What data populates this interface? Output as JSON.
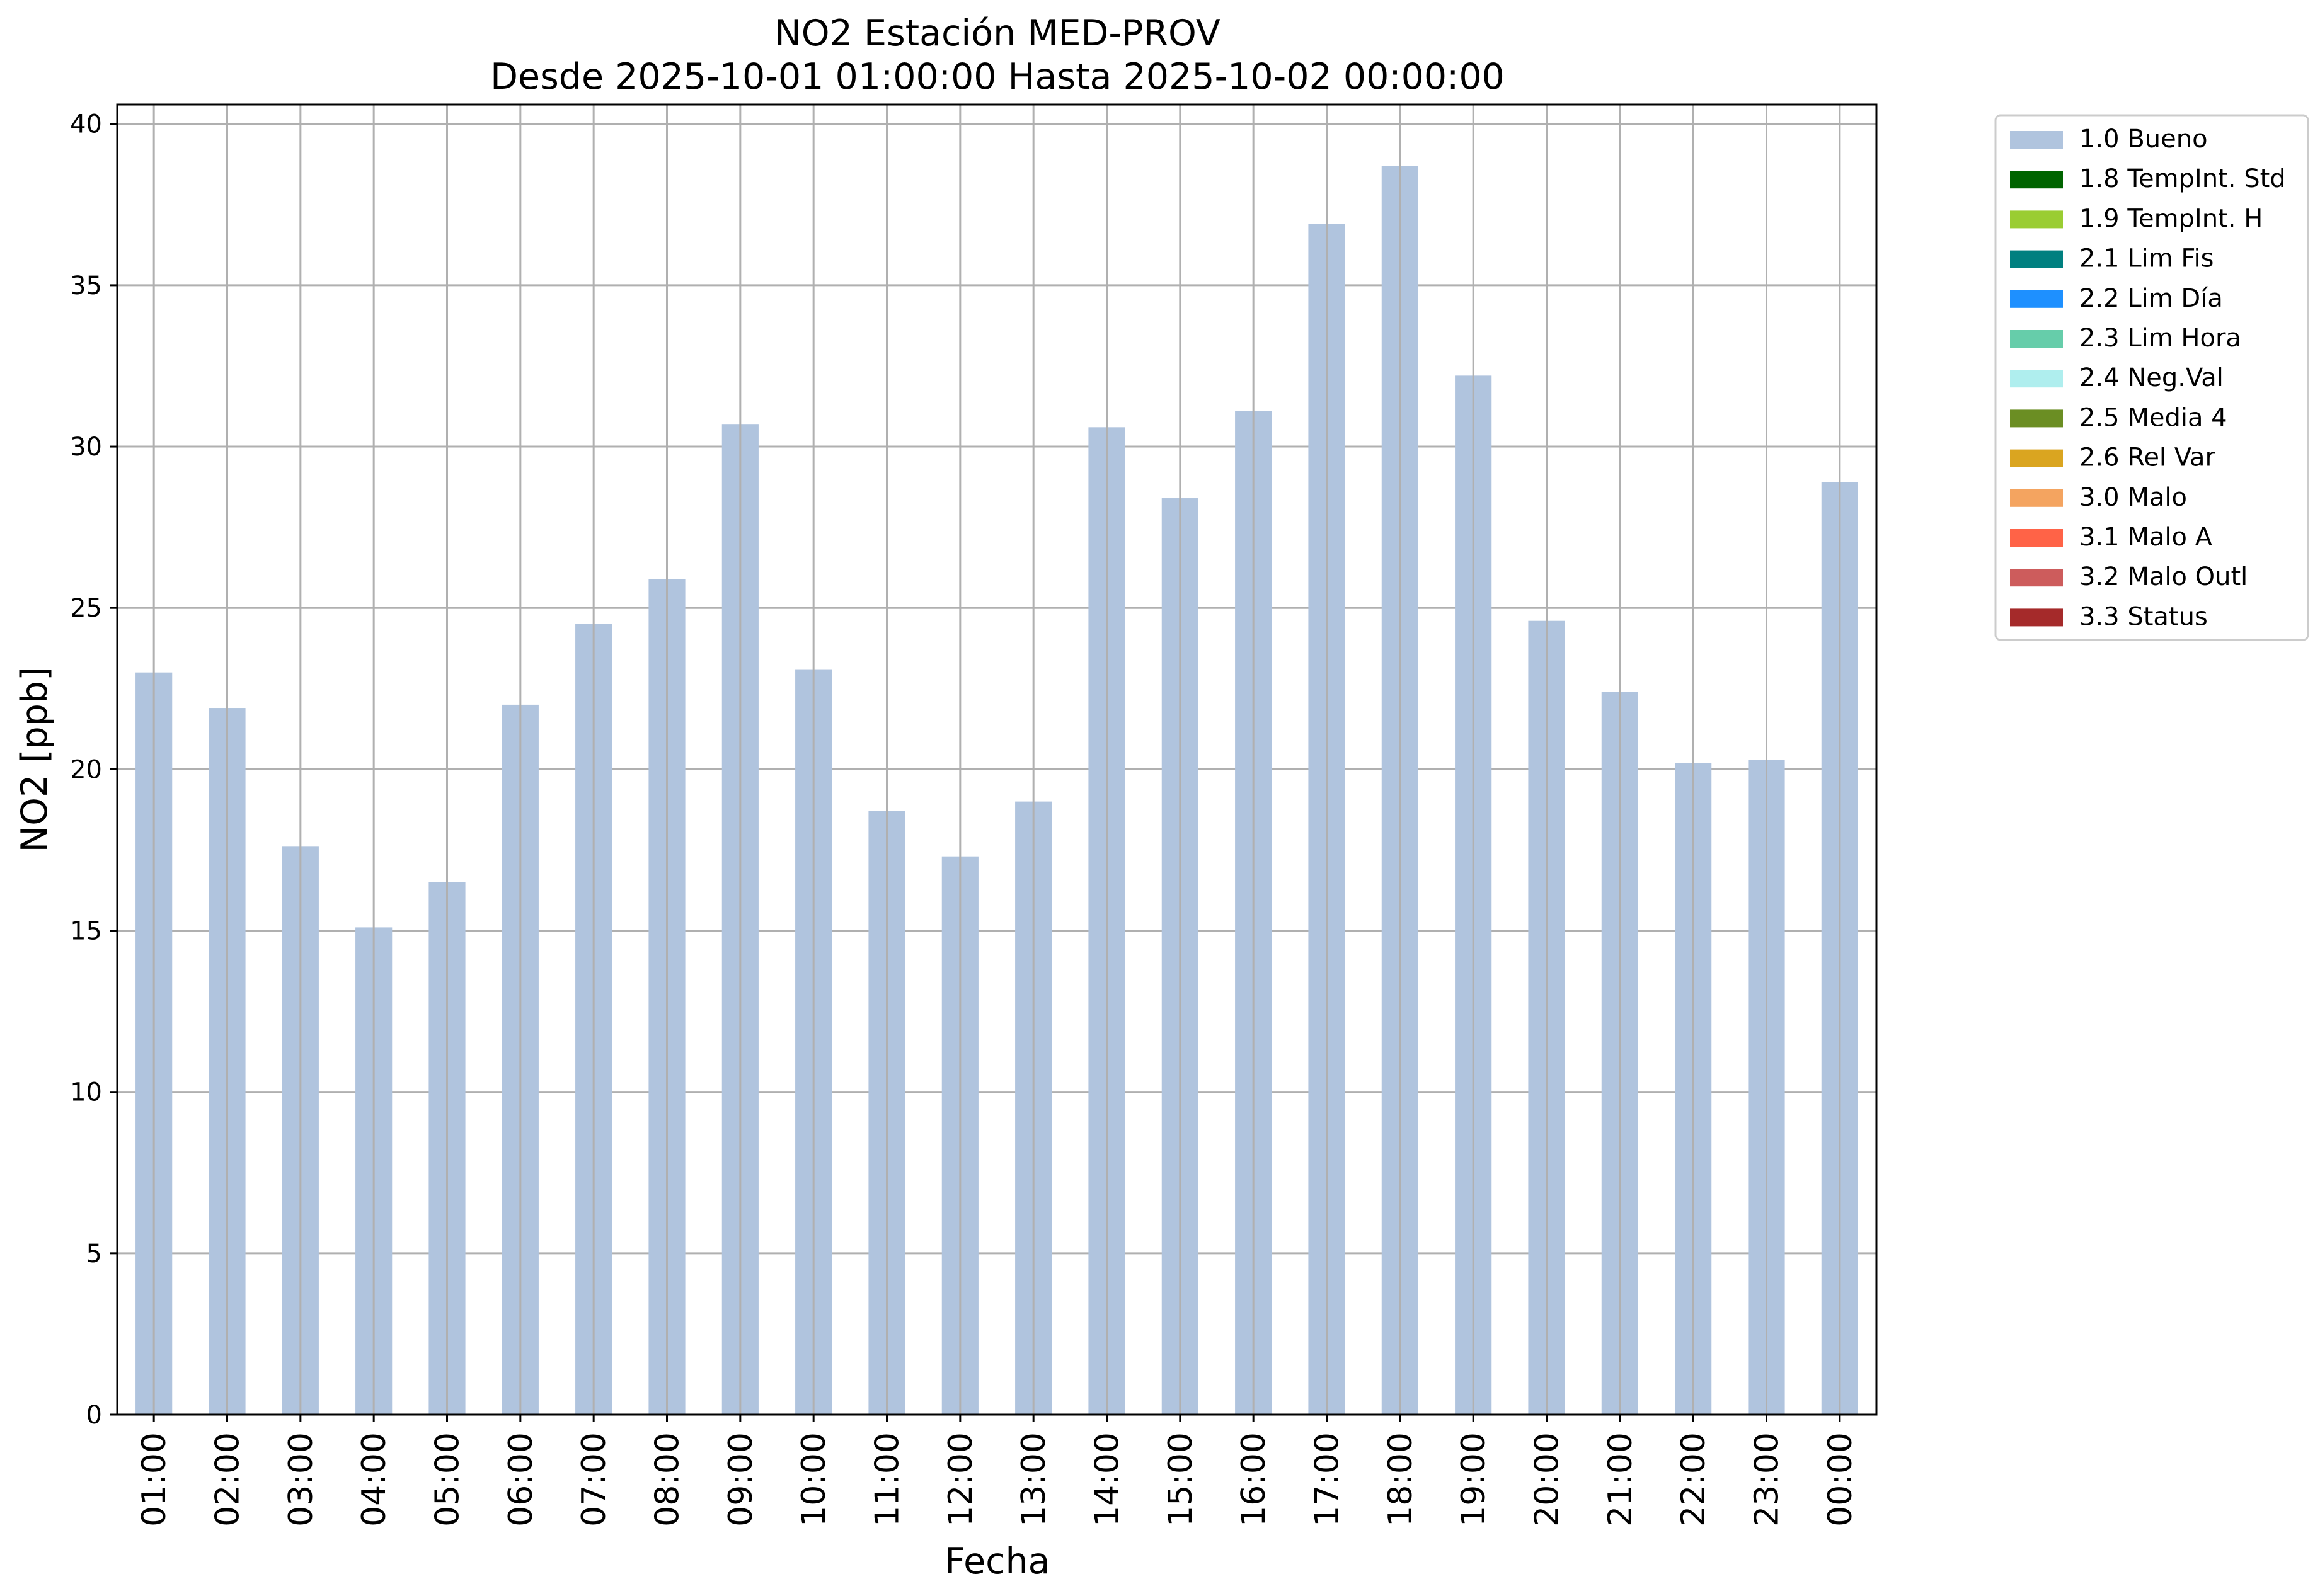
{
  "chart_data": {
    "type": "bar",
    "title": "NO2 Estación MED-PROV",
    "subtitle": "Desde 2025-10-01 01:00:00 Hasta 2025-10-02 00:00:00",
    "xlabel": "Fecha",
    "ylabel": "NO2 [ppb]",
    "ylim": [
      0,
      40.6
    ],
    "yticks": [
      0,
      5,
      10,
      15,
      20,
      25,
      30,
      35,
      40
    ],
    "grid": true,
    "legend_position": "outside top-right",
    "categories": [
      "01:00",
      "02:00",
      "03:00",
      "04:00",
      "05:00",
      "06:00",
      "07:00",
      "08:00",
      "09:00",
      "10:00",
      "11:00",
      "12:00",
      "13:00",
      "14:00",
      "15:00",
      "16:00",
      "17:00",
      "18:00",
      "19:00",
      "20:00",
      "21:00",
      "22:00",
      "23:00",
      "00:00"
    ],
    "series": [
      {
        "name": "1.0 Bueno",
        "color": "#b0c4de",
        "values": [
          23.0,
          21.9,
          17.6,
          15.1,
          16.5,
          22.0,
          24.5,
          25.9,
          30.7,
          23.1,
          18.7,
          17.3,
          19.0,
          30.6,
          28.4,
          31.1,
          36.9,
          38.7,
          32.2,
          24.6,
          22.4,
          20.2,
          20.3,
          28.9
        ]
      }
    ],
    "legend": [
      {
        "label": "1.0 Bueno",
        "color": "#b0c4de"
      },
      {
        "label": "1.8 TempInt. Std",
        "color": "#006400"
      },
      {
        "label": "1.9 TempInt. H",
        "color": "#9acd32"
      },
      {
        "label": "2.1 Lim Fis",
        "color": "#008080"
      },
      {
        "label": "2.2 Lim Día",
        "color": "#1e90ff"
      },
      {
        "label": "2.3 Lim Hora",
        "color": "#66cdaa"
      },
      {
        "label": "2.4 Neg.Val",
        "color": "#afeeee"
      },
      {
        "label": "2.5 Media 4",
        "color": "#6b8e23"
      },
      {
        "label": "2.6 Rel Var",
        "color": "#daa520"
      },
      {
        "label": "3.0 Malo",
        "color": "#f4a460"
      },
      {
        "label": "3.1 Malo A",
        "color": "#ff6347"
      },
      {
        "label": "3.2 Malo Outl",
        "color": "#cd5c5c"
      },
      {
        "label": "3.3 Status",
        "color": "#a52a2a"
      }
    ],
    "grid_color": "#b0b0b0"
  }
}
